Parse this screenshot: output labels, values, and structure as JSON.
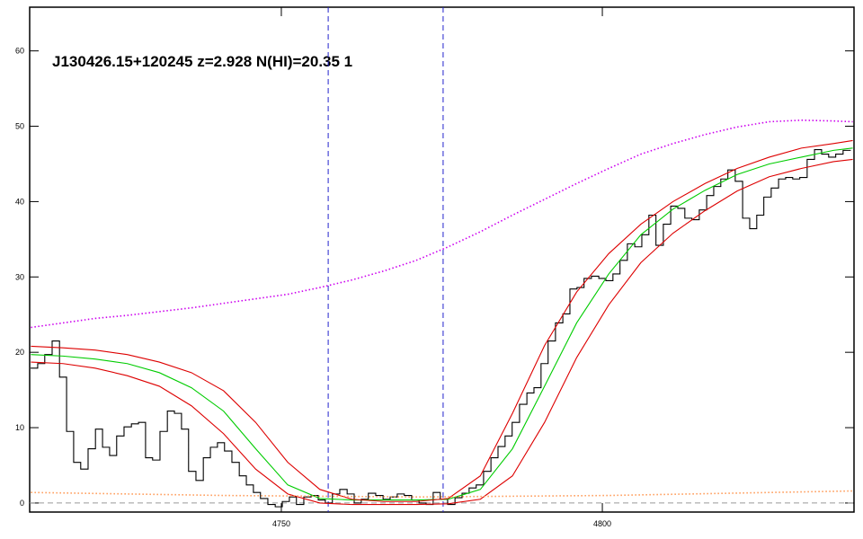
{
  "chart_data": {
    "type": "line",
    "title": "J130426.15+120245 z=2.928 N(HI)=20.35 1",
    "xlim": [
      4710.8,
      4839.2
    ],
    "ylim": [
      -1.2,
      65.8
    ],
    "xticks": [
      4750,
      4800
    ],
    "yticks": [
      0,
      10,
      20,
      30,
      40,
      50,
      60
    ],
    "hline": {
      "value": 0,
      "color": "#999999"
    },
    "vlines": {
      "values": [
        4757.3,
        4775.2
      ],
      "color": "#2222cc"
    },
    "series": [
      {
        "style": "step",
        "color": "#000000",
        "x": [
          4711.5,
          4712.6,
          4713.7,
          4714.9,
          4716.0,
          4717.1,
          4718.2,
          4719.3,
          4720.5,
          4721.6,
          4722.7,
          4723.8,
          4724.9,
          4726.1,
          4727.2,
          4728.3,
          4729.4,
          4730.5,
          4731.7,
          4732.8,
          4733.9,
          4735.0,
          4736.1,
          4737.3,
          4738.4,
          4739.5,
          4740.6,
          4741.7,
          4742.9,
          4744.0,
          4745.1,
          4746.2,
          4747.3,
          4748.5,
          4749.6,
          4750.7,
          4751.8,
          4752.9,
          4754.1,
          4755.2,
          4756.3,
          4757.4,
          4758.5,
          4759.7,
          4760.8,
          4761.9,
          4763.0,
          4764.1,
          4765.3,
          4766.4,
          4767.5,
          4768.6,
          4769.7,
          4770.9,
          4772.0,
          4773.1,
          4774.2,
          4775.3,
          4776.5,
          4777.6,
          4778.7,
          4779.8,
          4780.9,
          4782.1,
          4783.2,
          4784.3,
          4785.4,
          4786.5,
          4787.7,
          4788.8,
          4789.9,
          4791.0,
          4792.1,
          4793.3,
          4794.4,
          4795.5,
          4796.6,
          4797.7,
          4798.9,
          4800.0,
          4801.1,
          4802.2,
          4803.3,
          4804.5,
          4805.6,
          4806.7,
          4807.8,
          4808.9,
          4810.1,
          4811.2,
          4812.3,
          4813.4,
          4814.5,
          4815.7,
          4816.8,
          4817.9,
          4819.0,
          4820.1,
          4821.3,
          4822.4,
          4823.5,
          4824.6,
          4825.7,
          4826.9,
          4828.0,
          4829.1,
          4830.2,
          4831.3,
          4832.5,
          4833.6,
          4834.7,
          4835.8,
          4836.9,
          4838.1
        ],
        "values": [
          17.9,
          18.5,
          19.7,
          21.5,
          16.7,
          9.5,
          5.4,
          4.5,
          7.2,
          9.8,
          7.4,
          6.3,
          8.9,
          10.1,
          10.5,
          10.7,
          6.0,
          5.7,
          9.5,
          12.2,
          11.9,
          9.8,
          4.2,
          3.0,
          6.0,
          7.4,
          8.0,
          6.9,
          5.4,
          3.6,
          2.4,
          1.4,
          0.6,
          -0.2,
          -0.5,
          0.2,
          0.8,
          -0.2,
          0.8,
          1.0,
          0.4,
          0,
          1.2,
          1.8,
          1.2,
          0,
          0.5,
          1.3,
          1.0,
          0.5,
          0.8,
          1.2,
          1.0,
          0.4,
          0,
          -0.2,
          1.4,
          0.5,
          -0.2,
          0.7,
          1.3,
          2.0,
          2.4,
          4.2,
          6.0,
          7.5,
          8.9,
          10.7,
          13.1,
          14.6,
          15.3,
          18.5,
          21.5,
          23.9,
          25.1,
          28.4,
          28.6,
          29.8,
          30.1,
          29.8,
          29.5,
          30.4,
          32.2,
          34.4,
          34.0,
          35.6,
          38.2,
          34.2,
          37.0,
          39.4,
          39.1,
          37.8,
          37.6,
          38.9,
          40.8,
          42.0,
          43.0,
          44.2,
          42.7,
          37.8,
          36.4,
          38.2,
          40.6,
          41.8,
          43.0,
          43.2,
          43.0,
          43.2,
          45.6,
          46.9,
          46.3,
          45.9,
          46.3,
          46.8
        ]
      },
      {
        "style": "solid",
        "color": "#00cc00",
        "x": [
          4711,
          4716,
          4721,
          4726,
          4731,
          4736,
          4741,
          4746,
          4751,
          4756,
          4761,
          4766,
          4771,
          4776,
          4781,
          4786,
          4791,
          4796,
          4801,
          4806,
          4811,
          4816,
          4821,
          4826,
          4831,
          4836,
          4839
        ],
        "values": [
          19.7,
          19.5,
          19.1,
          18.5,
          17.3,
          15.3,
          12.2,
          7.2,
          2.4,
          0.6,
          0.4,
          0.4,
          0.4,
          0.5,
          1.8,
          7.2,
          15.5,
          23.9,
          30.4,
          35.6,
          39.0,
          41.5,
          43.6,
          45.0,
          45.9,
          46.8,
          47.1
        ]
      },
      {
        "style": "solid",
        "color": "#dd0000",
        "x": [
          4711,
          4716,
          4721,
          4726,
          4731,
          4736,
          4741,
          4746,
          4751,
          4756,
          4761,
          4766,
          4771,
          4776,
          4781,
          4786,
          4791,
          4796,
          4801,
          4806,
          4811,
          4816,
          4821,
          4826,
          4831,
          4836,
          4839
        ],
        "values": [
          20.8,
          20.6,
          20.3,
          19.7,
          18.7,
          17.3,
          14.9,
          10.7,
          5.4,
          1.8,
          0.5,
          0.2,
          0.2,
          0.6,
          3.6,
          11.9,
          20.9,
          28.0,
          33.1,
          37.0,
          40.0,
          42.4,
          44.4,
          45.9,
          47.1,
          47.7,
          48.1
        ]
      },
      {
        "style": "solid",
        "color": "#dd0000",
        "x": [
          4711,
          4716,
          4721,
          4726,
          4731,
          4736,
          4741,
          4746,
          4751,
          4756,
          4761,
          4766,
          4771,
          4776,
          4781,
          4786,
          4791,
          4796,
          4801,
          4806,
          4811,
          4816,
          4821,
          4826,
          4831,
          4836,
          4839
        ],
        "values": [
          18.7,
          18.5,
          17.9,
          16.9,
          15.5,
          12.9,
          9.2,
          4.5,
          1.2,
          0,
          -0.2,
          -0.2,
          -0.2,
          -0.1,
          0.5,
          3.6,
          10.7,
          19.3,
          26.3,
          31.9,
          35.8,
          38.8,
          41.4,
          43.3,
          44.4,
          45.3,
          45.6
        ]
      },
      {
        "style": "dotted",
        "color": "#cc00ee",
        "x": [
          4711,
          4716,
          4721,
          4726,
          4731,
          4736,
          4741,
          4746,
          4751,
          4756,
          4761,
          4766,
          4771,
          4776,
          4781,
          4786,
          4791,
          4796,
          4801,
          4806,
          4811,
          4816,
          4821,
          4826,
          4831,
          4836,
          4839
        ],
        "values": [
          23.3,
          23.9,
          24.5,
          24.9,
          25.4,
          25.9,
          26.5,
          27.1,
          27.7,
          28.6,
          29.6,
          30.8,
          32.2,
          34.0,
          36.0,
          38.2,
          40.3,
          42.4,
          44.4,
          46.3,
          47.7,
          48.9,
          49.9,
          50.6,
          50.8,
          50.7,
          50.6
        ]
      },
      {
        "style": "dotted",
        "color": "#ff9955",
        "x": [
          4711,
          4741,
          4771,
          4801,
          4839
        ],
        "values": [
          1.4,
          1.0,
          0.8,
          1.0,
          1.6
        ]
      }
    ]
  }
}
